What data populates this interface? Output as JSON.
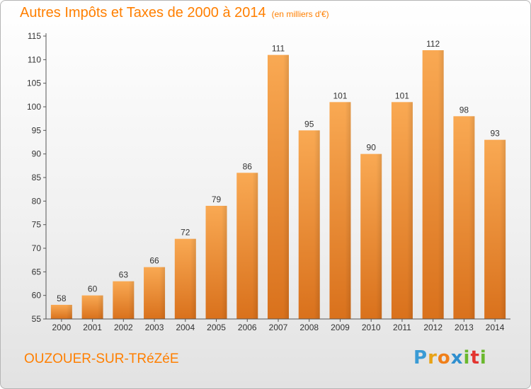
{
  "title": "Autres Impôts et Taxes de 2000 à 2014",
  "unit": "(en milliers d'€)",
  "commune": "OUZOUER-SUR-TRéZéE",
  "logo": {
    "letters": [
      "P",
      "r",
      "o",
      "x",
      "i",
      "t",
      "i"
    ],
    "colors": [
      "#3a9bd5",
      "#e8a317",
      "#f07f19",
      "#2f8fcf",
      "#6ab82d",
      "#e3342f",
      "#6ab82d"
    ]
  },
  "chart_data": {
    "type": "bar",
    "categories": [
      "2000",
      "2001",
      "2002",
      "2003",
      "2004",
      "2005",
      "2006",
      "2007",
      "2008",
      "2009",
      "2010",
      "2011",
      "2012",
      "2013",
      "2014"
    ],
    "values": [
      58,
      60,
      63,
      66,
      72,
      79,
      86,
      111,
      95,
      101,
      90,
      101,
      112,
      98,
      93
    ],
    "ylim": [
      55,
      115
    ],
    "yticks": [
      55,
      60,
      65,
      70,
      75,
      80,
      85,
      90,
      95,
      100,
      105,
      110,
      115
    ],
    "grid": false,
    "bar_color": "#f28c2c"
  }
}
